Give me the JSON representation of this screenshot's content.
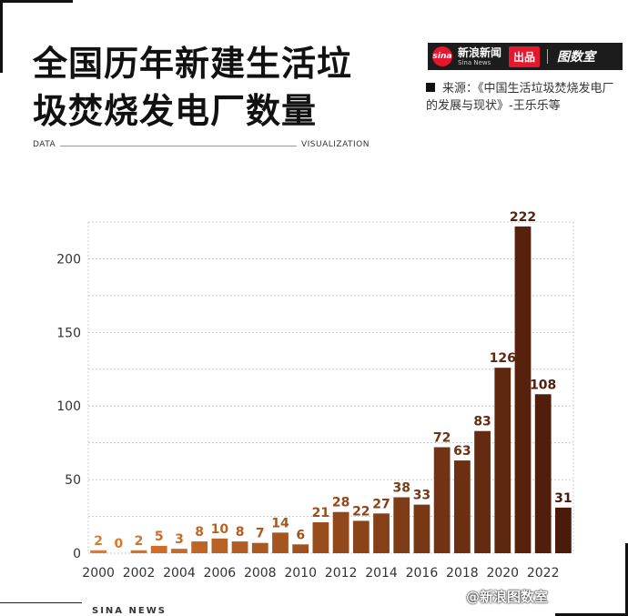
{
  "title_line1": "全国历年新建生活垃",
  "title_line2": "圾焚烧发电厂数量",
  "brand": {
    "sina_logo": "sina",
    "sina_cn": "新浪新闻",
    "sina_en": "Sina News",
    "badge": "出品",
    "room": "图数室"
  },
  "source": {
    "line": "来源：《中国生活垃圾焚烧发电厂的发展与现状》-王乐乐等"
  },
  "subtitle_left": "DATA",
  "subtitle_right": "VISUALIZATION",
  "footer_left": "SINA NEWS",
  "footer_right": "@新浪图数室",
  "colors": {
    "early": "#e07b2e",
    "late": "#4a1a0a",
    "grid": "#cccccc"
  },
  "chart_data": {
    "type": "bar",
    "x": [
      2000,
      2001,
      2002,
      2003,
      2004,
      2005,
      2006,
      2007,
      2008,
      2009,
      2010,
      2011,
      2012,
      2013,
      2014,
      2015,
      2016,
      2017,
      2018,
      2019,
      2020,
      2021,
      2022,
      2023
    ],
    "values": [
      2,
      0,
      2,
      5,
      3,
      8,
      10,
      8,
      7,
      14,
      6,
      21,
      28,
      22,
      27,
      38,
      33,
      72,
      63,
      83,
      126,
      222,
      108,
      31
    ],
    "xticks": [
      "2000",
      "2002",
      "2004",
      "2006",
      "2008",
      "2010",
      "2012",
      "2014",
      "2016",
      "2018",
      "2020",
      "2022"
    ],
    "yticks": [
      0,
      50,
      100,
      150,
      200
    ],
    "ylim": [
      0,
      225
    ],
    "grid": "horizontal",
    "data_labels": true
  }
}
